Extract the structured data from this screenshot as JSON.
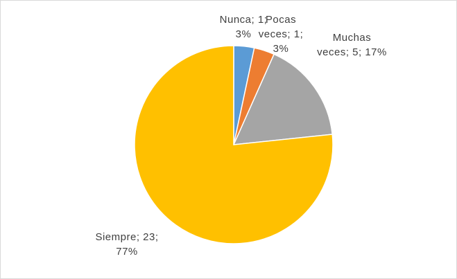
{
  "chart_data": {
    "type": "pie",
    "categories": [
      "Nunca",
      "Pocas veces",
      "Muchas veces",
      "Siempre"
    ],
    "values": [
      1,
      1,
      5,
      23
    ],
    "value_labels": [
      "Nunca; 1; 3%",
      "Pocas veces; 1; 3%",
      "Muchas veces; 5; 17%",
      "Siempre; 23; 77%"
    ],
    "colors": [
      "#5b9bd5",
      "#ed7d31",
      "#a5a5a5",
      "#ffc000"
    ]
  }
}
